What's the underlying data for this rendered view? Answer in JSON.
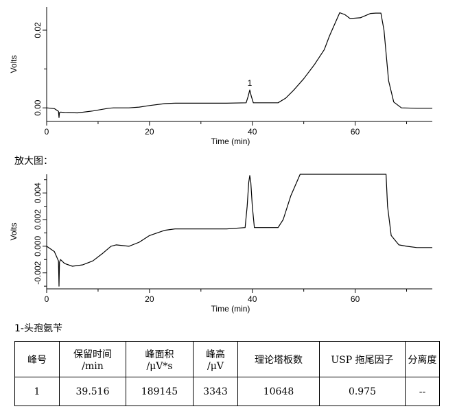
{
  "chart_data": [
    {
      "type": "line",
      "title": "",
      "xlabel": "Time (min)",
      "ylabel": "Volts",
      "xlim": [
        0,
        75
      ],
      "ylim": [
        -0.0035,
        0.026
      ],
      "xticks": [
        0,
        20,
        40,
        60
      ],
      "xtick_labels": [
        "0",
        "20",
        "40",
        "60"
      ],
      "yticks": [
        0.0,
        0.02
      ],
      "ytick_labels": [
        "0.00",
        "0.02"
      ],
      "peak_labels": [
        {
          "x": 39.5,
          "y": 0.0046,
          "label": "1"
        }
      ],
      "series": [
        {
          "x": [
            0,
            1.5,
            2.3,
            2.4,
            2.5,
            2.7,
            3.5,
            6,
            9,
            12,
            13,
            16,
            18,
            20,
            23,
            25,
            30,
            35,
            38.8,
            39.2,
            39.5,
            39.8,
            40.2,
            41,
            45,
            46.5,
            48,
            50,
            52,
            54,
            55,
            56,
            57,
            58,
            59,
            61,
            63,
            64,
            65,
            65.6,
            66.5,
            67.5,
            69,
            72,
            75
          ],
          "y": [
            0.0,
            -0.0002,
            -0.0009,
            -0.0025,
            -0.0012,
            -0.0011,
            -0.0012,
            -0.0013,
            -0.0008,
            -0.0001,
            0.0,
            0.0,
            0.0002,
            0.0006,
            0.0011,
            0.0012,
            0.0012,
            0.0012,
            0.0013,
            0.003,
            0.0046,
            0.003,
            0.0013,
            0.0013,
            0.0013,
            0.0025,
            0.0045,
            0.0075,
            0.011,
            0.015,
            0.0185,
            0.0215,
            0.0245,
            0.024,
            0.023,
            0.0232,
            0.0243,
            0.0244,
            0.0244,
            0.02,
            0.007,
            0.0015,
            0.0,
            -0.0001,
            -0.0001
          ]
        }
      ]
    },
    {
      "type": "line",
      "title": "",
      "xlabel": "Time (min)",
      "ylabel": "Volts",
      "xlim": [
        0,
        75
      ],
      "ylim": [
        -0.0032,
        0.0054
      ],
      "xticks": [
        0,
        20,
        40,
        60
      ],
      "xtick_labels": [
        "0",
        "20",
        "40",
        "60"
      ],
      "yticks": [
        -0.002,
        0.0,
        0.002,
        0.004
      ],
      "ytick_labels": [
        "-0.002",
        "0.000",
        "0.002",
        "0.004"
      ],
      "series": [
        {
          "x": [
            0,
            1.5,
            2.3,
            2.4,
            2.5,
            2.7,
            3.5,
            5,
            7,
            9,
            11,
            12.5,
            13.5,
            16,
            18,
            20,
            23,
            25,
            30,
            35,
            38.6,
            39.0,
            39.3,
            39.5,
            39.7,
            40.0,
            40.4,
            41,
            45,
            46,
            47.5,
            49.3,
            50,
            55,
            60,
            66,
            66.3,
            67,
            68.5,
            70,
            72,
            75
          ],
          "y": [
            0.0,
            -0.0004,
            -0.0011,
            -0.003,
            -0.0012,
            -0.001,
            -0.0013,
            -0.0015,
            -0.0014,
            -0.0011,
            -0.0005,
            0.0,
            0.0001,
            0.0,
            0.0003,
            0.0008,
            0.0012,
            0.0013,
            0.0013,
            0.0013,
            0.0014,
            0.003,
            0.0048,
            0.0053,
            0.0048,
            0.003,
            0.0014,
            0.0014,
            0.0014,
            0.002,
            0.0038,
            0.0054,
            0.0054,
            0.0054,
            0.0054,
            0.0054,
            0.003,
            0.0008,
            0.0001,
            0.0,
            -0.0001,
            -0.0001
          ]
        }
      ]
    }
  ],
  "labels": {
    "zoom_caption": "放大图：",
    "compound_caption": "1-头孢氨苄"
  },
  "table": {
    "headers": [
      "峰号",
      "保留时间\n/min",
      "峰面积\n/μV*s",
      "峰高\n/μV",
      "理论塔板数",
      "USP 拖尾因子",
      "分离度"
    ],
    "rows": [
      [
        "1",
        "39.516",
        "189145",
        "3343",
        "10648",
        "0.975",
        "--"
      ]
    ]
  }
}
